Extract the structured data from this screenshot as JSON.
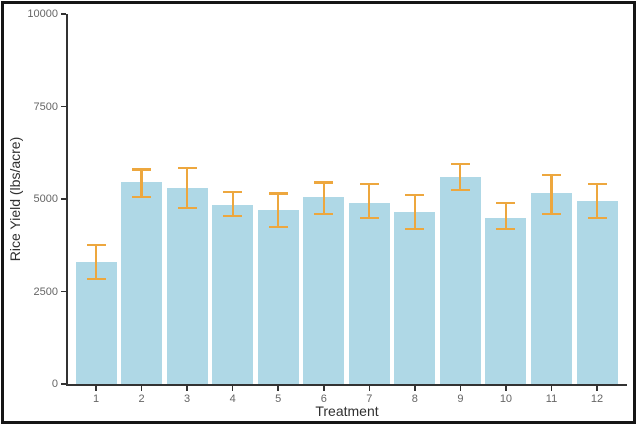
{
  "frame": {
    "border_color": "#151515",
    "background": "#ffffff"
  },
  "chart_data": {
    "type": "bar",
    "title": "",
    "xlabel": "Treatment",
    "ylabel": "Rice Yield (lbs/acre)",
    "categories": [
      "1",
      "2",
      "3",
      "4",
      "5",
      "6",
      "7",
      "8",
      "9",
      "10",
      "11",
      "12"
    ],
    "values": [
      3300,
      5450,
      5300,
      4850,
      4700,
      5050,
      4900,
      4650,
      5600,
      4500,
      5150,
      4950
    ],
    "error_high": [
      3750,
      5800,
      5850,
      5200,
      5150,
      5450,
      5400,
      5100,
      5950,
      4900,
      5650,
      5400
    ],
    "error_low": [
      2850,
      5050,
      4750,
      4550,
      4250,
      4600,
      4500,
      4200,
      5250,
      4200,
      4600,
      4500
    ],
    "ylim": [
      0,
      10000
    ],
    "yticks": [
      0,
      2500,
      5000,
      7500,
      10000
    ],
    "grid": "off",
    "legend": "none",
    "bar_color": "#AFD8E6",
    "error_bar_color": "#EDA73E",
    "axis_color": "#333333",
    "tick_label_color": "#666666",
    "axis_label_color": "#303030"
  }
}
